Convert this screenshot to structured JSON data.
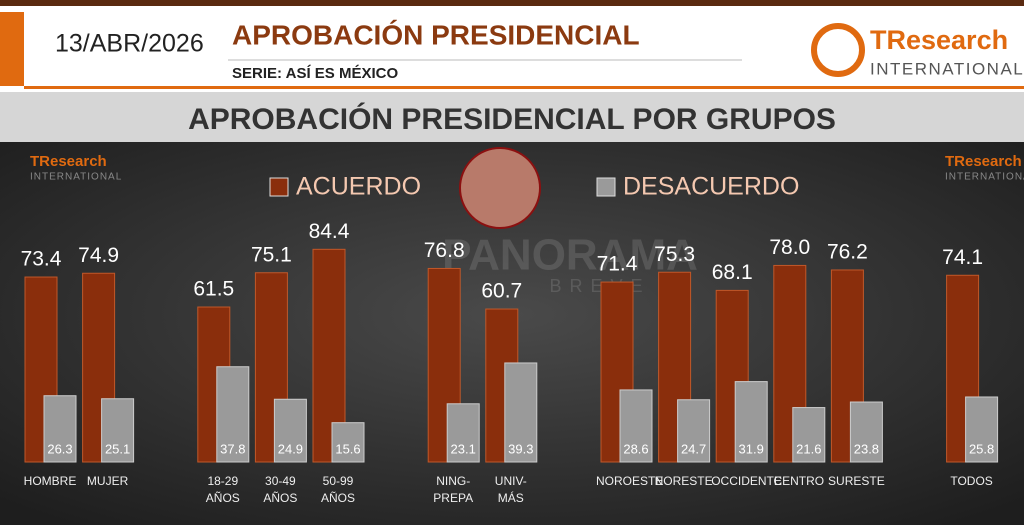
{
  "header": {
    "date": "13/ABR/2026",
    "title": "APROBACIÓN PRESIDENCIAL",
    "subtitle": "SERIE: ASÍ ES MÉXICO",
    "logo_main": "TResearch",
    "logo_sub": "INTERNATIONAL"
  },
  "watermark": {
    "main": "PANORAMA",
    "sub": "BREVE"
  },
  "chart_data": {
    "type": "bar",
    "title": "APROBACIÓN PRESIDENCIAL POR GRUPOS",
    "categories": [
      "HOMBRE",
      "MUJER",
      null,
      "18-29\nAÑOS",
      "30-49\nAÑOS",
      "50-99\nAÑOS",
      null,
      "NING-\nPREPA",
      "UNIV-\nMÁS",
      null,
      "NOROESTE",
      "NORESTE",
      "OCCIDENTE",
      "CENTRO",
      "SURESTE",
      null,
      "TODOS"
    ],
    "series": [
      {
        "name": "ACUERDO",
        "color": "#8a2e0c",
        "values": [
          73.4,
          74.9,
          null,
          61.5,
          75.1,
          84.4,
          null,
          76.8,
          60.7,
          null,
          71.4,
          75.3,
          68.1,
          78.0,
          76.2,
          null,
          74.1
        ],
        "value_labels": [
          "73.4",
          "74.9",
          null,
          "61.5",
          "75.1",
          "84.4",
          null,
          "76.8",
          "60.7",
          null,
          "71.4",
          "75.3",
          "68.1",
          "78.0",
          "76.2",
          null,
          "74.1"
        ]
      },
      {
        "name": "DESACUERDO",
        "color": "#9a9a9a",
        "values": [
          26.3,
          25.1,
          null,
          37.8,
          24.9,
          15.6,
          null,
          23.1,
          39.3,
          null,
          28.6,
          24.7,
          31.9,
          21.6,
          23.8,
          null,
          25.8
        ]
      }
    ],
    "ylim": [
      0,
      100
    ],
    "grid": false
  }
}
